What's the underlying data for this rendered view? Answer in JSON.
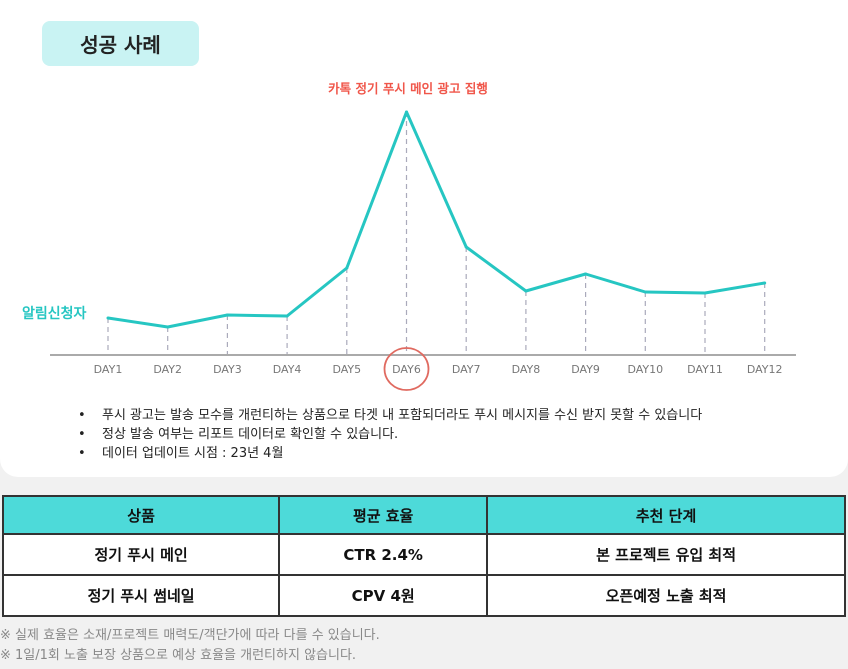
{
  "title": "성공 사례",
  "chart_data": {
    "type": "line",
    "annotation": "카톡 정기 푸시 메인 광고 집행",
    "series_label": "알림신청자",
    "categories": [
      "DAY1",
      "DAY2",
      "DAY3",
      "DAY4",
      "DAY5",
      "DAY6",
      "DAY7",
      "DAY8",
      "DAY9",
      "DAY10",
      "DAY11",
      "DAY12"
    ],
    "values": [
      36,
      27,
      39,
      38,
      86,
      242,
      107,
      63,
      80,
      62,
      61,
      71
    ],
    "ylim": [
      0,
      250
    ],
    "highlight_category": "DAY6",
    "line_color": "#26c6c2",
    "annotation_color": "#f0564a"
  },
  "notes": [
    "푸시 광고는 발송 모수를 개런티하는 상품으로 타겟 내 포함되더라도 푸시 메시지를 수신 받지 못할 수 있습니다",
    "정상 발송 여부는 리포트 데이터로 확인할 수 있습니다.",
    "데이터 업데이트 시점  : 23년 4월"
  ],
  "table": {
    "headers": [
      "상품",
      "평균 효율",
      "추천 단계"
    ],
    "rows": [
      [
        "정기 푸시 메인",
        "CTR 2.4%",
        "본 프로젝트 유입 최적"
      ],
      [
        "정기 푸시 썸네일",
        "CPV 4원",
        "오픈예정 노출 최적"
      ]
    ]
  },
  "footnotes": [
    "※ 실제 효율은 소재/프로젝트 매력도/객단가에 따라 다를 수 있습니다.",
    "※ 1일/1회 노출 보장 상품으로 예상 효율을 개런티하지 않습니다."
  ]
}
